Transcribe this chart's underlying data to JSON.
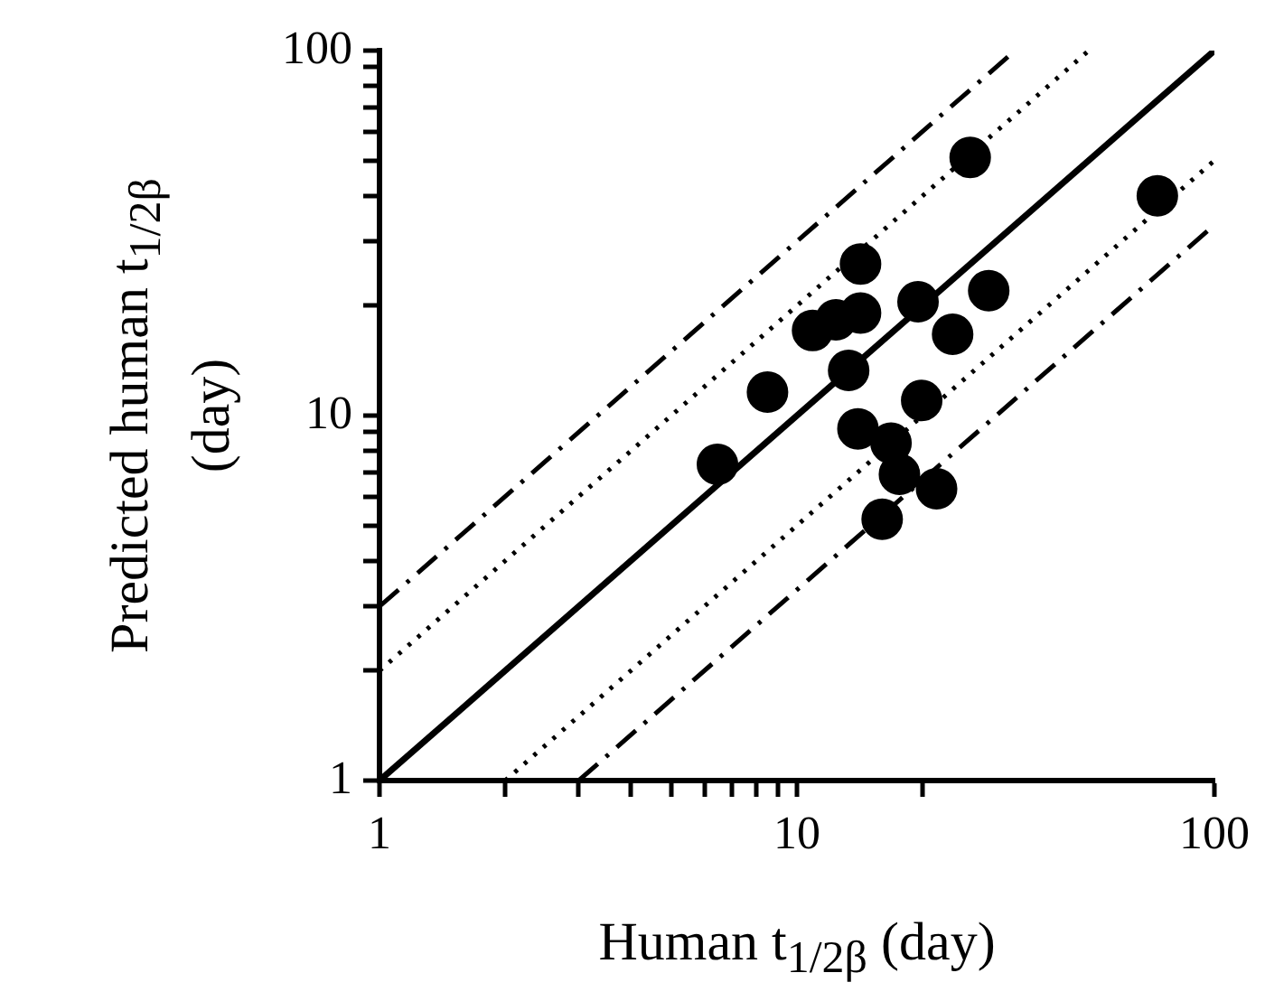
{
  "chart_data": {
    "type": "scatter",
    "xlabel": "Human t$_{1/2β}$ (day)",
    "ylabel": "Predicted human t$_{1/2β}$ (day)",
    "log": "xy",
    "grid": false,
    "legend": false,
    "xlim": [
      1,
      100
    ],
    "ylim": [
      1,
      100
    ],
    "xticks": [
      1,
      {
        "value": 2,
        "label": null
      },
      {
        "value": 3,
        "label": null
      },
      {
        "value": 4,
        "label": null
      },
      {
        "value": 5,
        "label": null
      },
      {
        "value": 6,
        "label": null
      },
      {
        "value": 7,
        "label": null
      },
      {
        "value": 8,
        "label": null
      },
      {
        "value": 9,
        "label": null
      },
      10,
      {
        "value": 20,
        "label": null
      },
      100
    ],
    "yticks": [
      1,
      {
        "value": 2,
        "label": null
      },
      {
        "value": 3,
        "label": null
      },
      {
        "value": 4,
        "label": null
      },
      {
        "value": 5,
        "label": null
      },
      {
        "value": 6,
        "label": null
      },
      {
        "value": 7,
        "label": null
      },
      {
        "value": 8,
        "label": null
      },
      {
        "value": 9,
        "label": null
      },
      10,
      {
        "value": 20,
        "label": null
      },
      {
        "value": 30,
        "label": null
      },
      {
        "value": 40,
        "label": null
      },
      {
        "value": 50,
        "label": null
      },
      {
        "value": 60,
        "label": null
      },
      {
        "value": 70,
        "label": null
      },
      {
        "value": 80,
        "label": null
      },
      {
        "value": 90,
        "label": null
      },
      100
    ],
    "series": [
      {
        "color": "#000000",
        "marker": "circle",
        "x": [
          26,
          73,
          14.2,
          10.9,
          12.4,
          14.2,
          19.5,
          28.8,
          23.6,
          13.3,
          8.5,
          6.45,
          19.9,
          14,
          16.8,
          17.6,
          21.6,
          16
        ],
        "values": [
          51,
          40,
          26,
          17.1,
          18.3,
          19.1,
          20.5,
          22,
          16.7,
          13.3,
          11.6,
          7.35,
          11,
          9.2,
          8.4,
          6.9,
          6.3,
          5.2
        ]
      },
      {
        "type": "line",
        "color": "#000000",
        "line_style": "solid",
        "marker": "none",
        "x": [
          1,
          100
        ],
        "values": [
          1,
          100
        ]
      },
      {
        "type": "line",
        "color": "#000000",
        "line_style": "dotted",
        "marker": "none",
        "x": [
          1,
          50
        ],
        "values": [
          2,
          100
        ]
      },
      {
        "type": "line",
        "color": "#000000",
        "line_style": "dotted",
        "marker": "none",
        "x": [
          2,
          100
        ],
        "values": [
          1,
          50
        ]
      },
      {
        "type": "line",
        "color": "#000000",
        "line_style": "dashed",
        "marker": "none",
        "x": [
          1,
          33.3
        ],
        "values": [
          3,
          100
        ]
      },
      {
        "type": "line",
        "color": "#000000",
        "line_style": "dashed",
        "marker": "none",
        "x": [
          3,
          100
        ],
        "values": [
          1,
          33.3
        ]
      }
    ]
  }
}
